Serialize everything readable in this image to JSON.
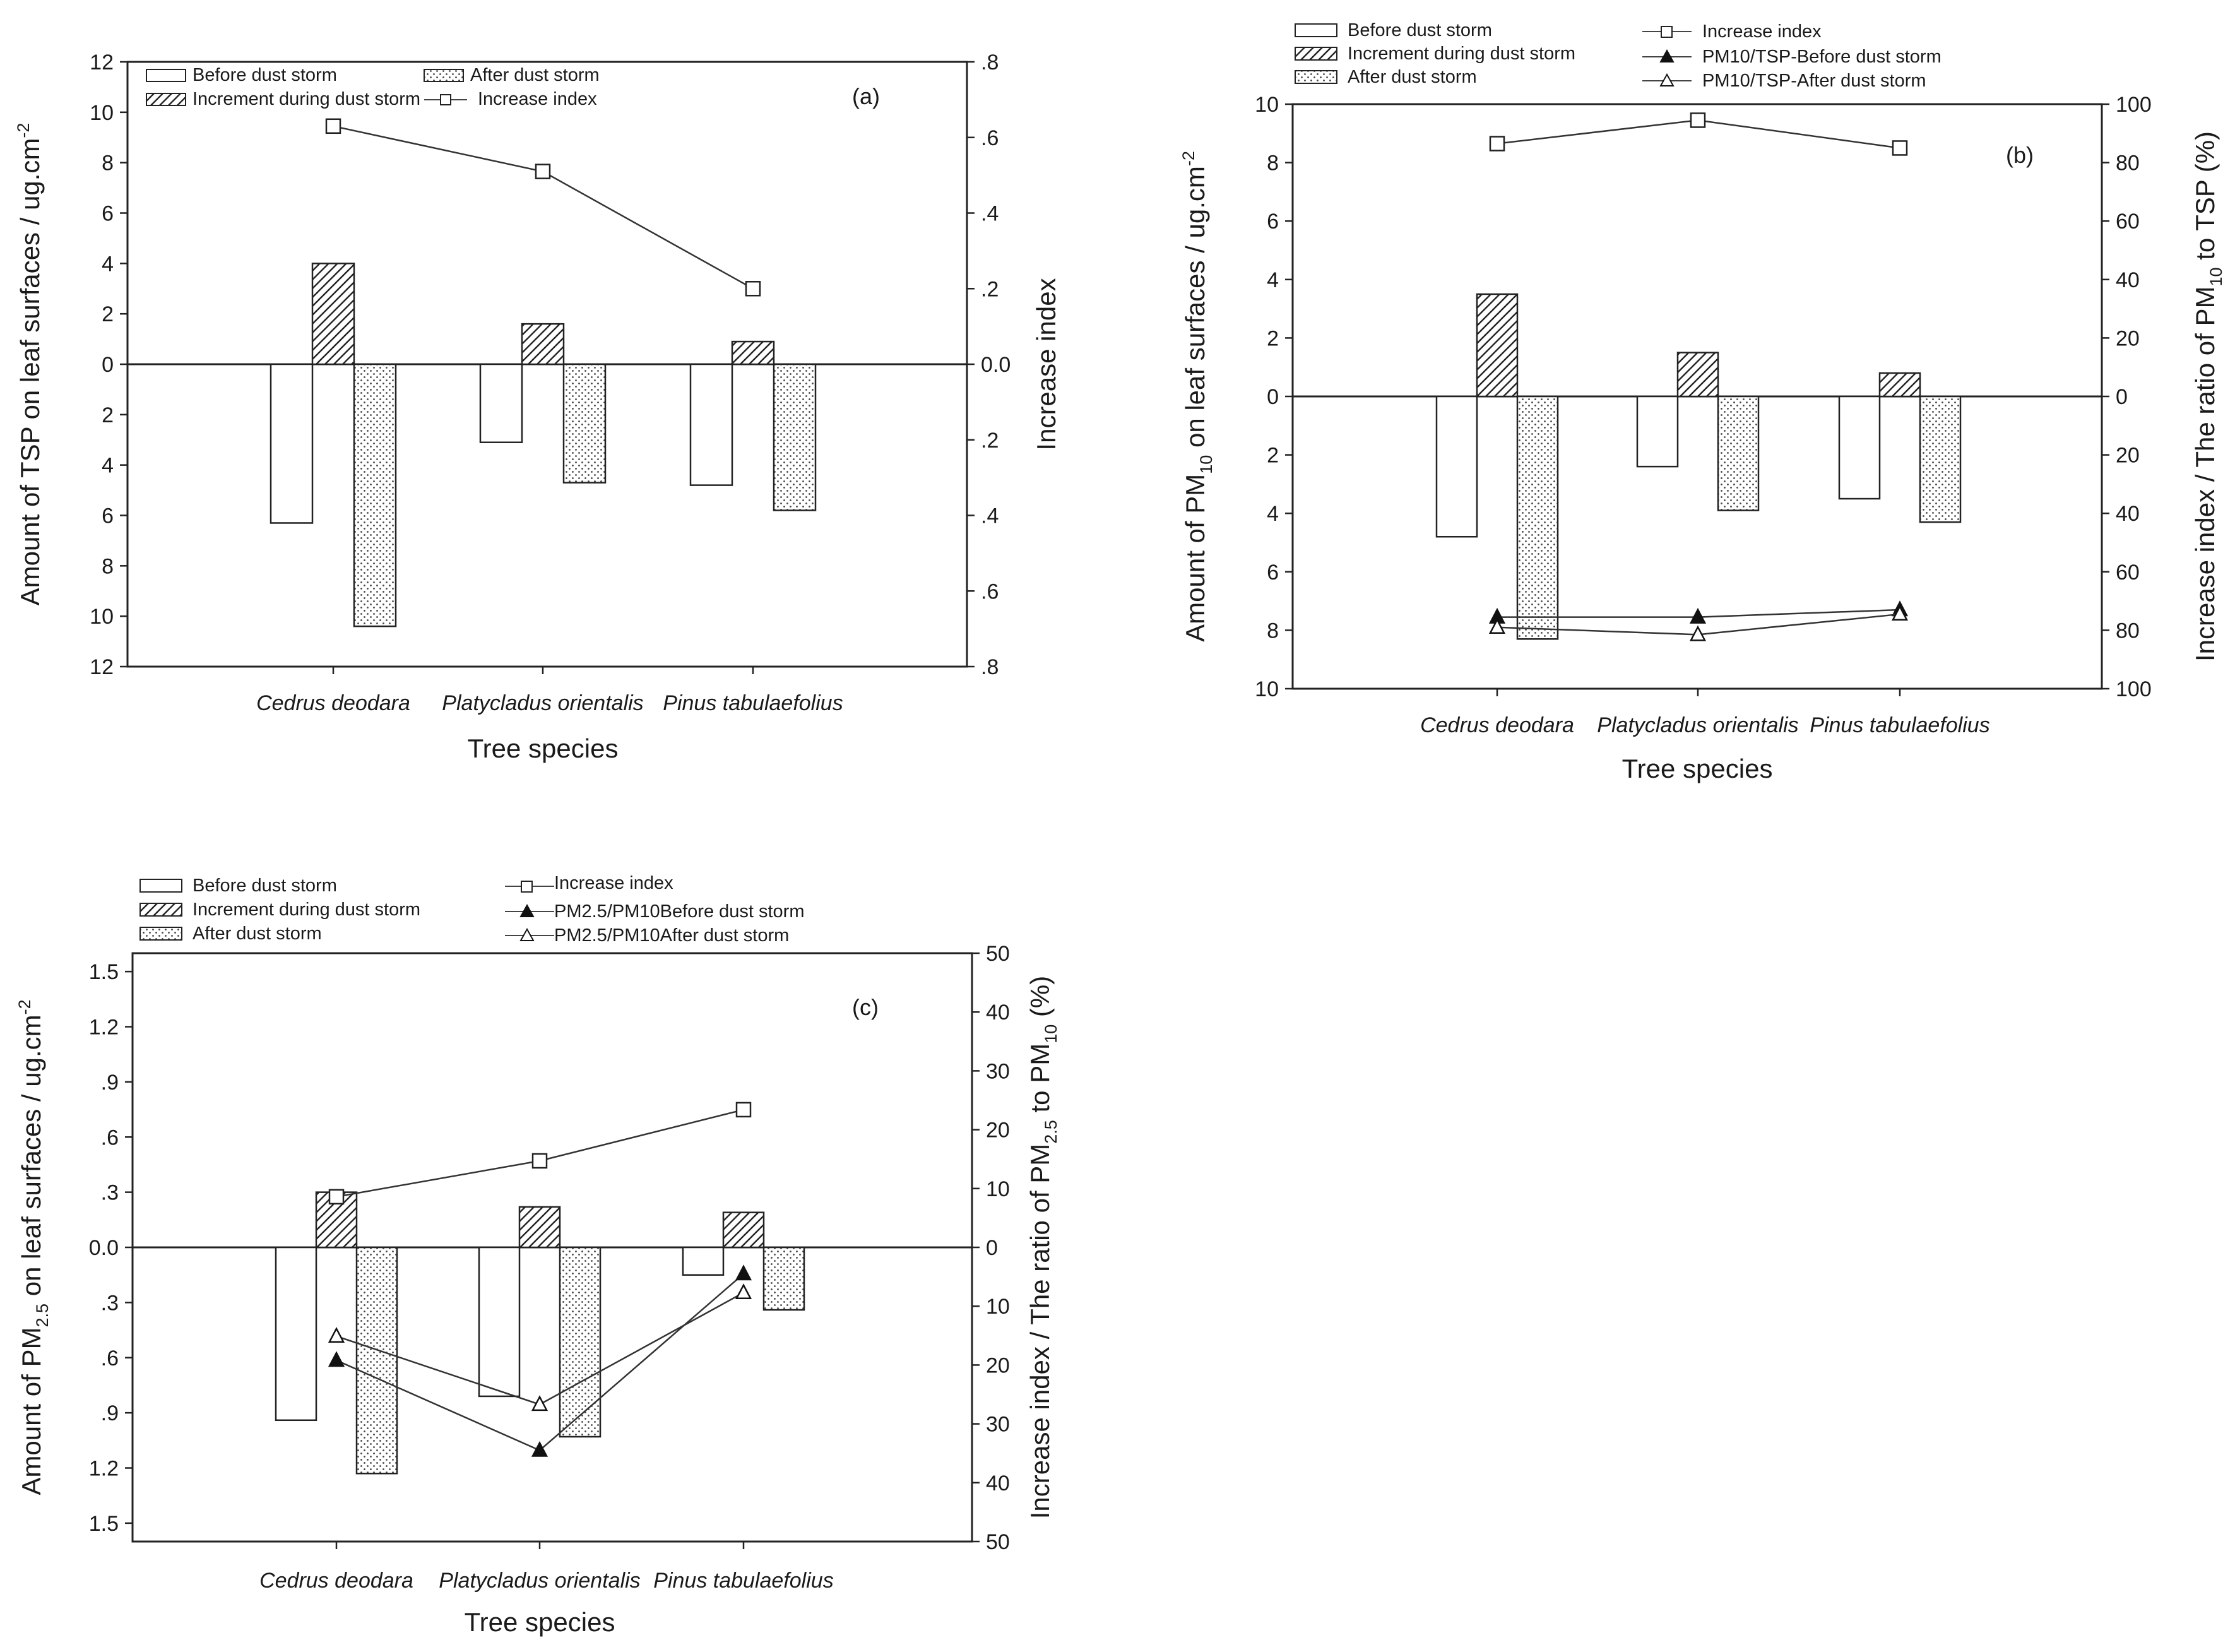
{
  "chart_data": [
    {
      "id": "a",
      "type": "bar",
      "panel_label": "(a)",
      "categories": [
        "Cedrus deodara",
        "Platycladus orientalis",
        "Pinus tabulaefolius"
      ],
      "xlabel": "Tree species",
      "ylabel_left": "Amount of TSP on leaf surfaces / ug.cm",
      "ylabel_left_sup": "-2",
      "ylabel_right": "Increase index",
      "ylim_left": [
        -12,
        12
      ],
      "ylim_right": [
        -0.8,
        0.8
      ],
      "yticks_left": [
        "12",
        "10",
        "8",
        "6",
        "4",
        "2",
        "0",
        "2",
        "4",
        "6",
        "8",
        "10",
        "12"
      ],
      "yticks_right": [
        ".8",
        ".6",
        ".4",
        ".2",
        "0.0",
        ".2",
        ".4",
        ".6",
        ".8"
      ],
      "bar_series": [
        {
          "name": "Before dust storm",
          "pattern": "white",
          "direction": "down",
          "values": [
            6.3,
            3.1,
            4.8
          ]
        },
        {
          "name": "Increment during dust storm",
          "pattern": "hatch",
          "direction": "up",
          "values": [
            4.0,
            1.6,
            0.9
          ]
        },
        {
          "name": "After dust storm",
          "pattern": "dots",
          "direction": "down",
          "values": [
            10.4,
            4.7,
            5.8
          ]
        }
      ],
      "line_series": [
        {
          "name": "Increase index",
          "marker": "square-open",
          "axis": "right",
          "direction": "up",
          "values": [
            0.63,
            0.51,
            0.2
          ]
        }
      ],
      "legend": [
        "Before dust storm",
        "After dust storm",
        "Increment during dust storm",
        "Increase index"
      ]
    },
    {
      "id": "b",
      "type": "bar",
      "panel_label": "(b)",
      "categories": [
        "Cedrus deodara",
        "Platycladus orientalis",
        "Pinus tabulaefolius"
      ],
      "xlabel": "Tree species",
      "ylabel_left": "Amount of PM10 on leaf surfaces / ug.cm-2",
      "ylabel_right": "Increase index / The ratio of PM10 to TSP (%)",
      "ylim_left": [
        -10,
        10
      ],
      "ylim_right": [
        -100,
        100
      ],
      "yticks_left": [
        "10",
        "8",
        "6",
        "4",
        "2",
        "0",
        "2",
        "4",
        "6",
        "8",
        "10"
      ],
      "yticks_right": [
        "100",
        "80",
        "60",
        "40",
        "20",
        "0",
        "20",
        "40",
        "60",
        "80",
        "100"
      ],
      "bar_series": [
        {
          "name": "Before dust storm",
          "pattern": "white",
          "direction": "down",
          "values": [
            4.8,
            2.4,
            3.5
          ]
        },
        {
          "name": "Increment during dust storm",
          "pattern": "hatch",
          "direction": "up",
          "values": [
            3.5,
            1.5,
            0.8
          ]
        },
        {
          "name": "After dust storm",
          "pattern": "dots",
          "direction": "down",
          "values": [
            8.3,
            3.9,
            4.3
          ]
        }
      ],
      "line_series": [
        {
          "name": "Increase index",
          "marker": "square-open",
          "axis": "right",
          "direction": "up",
          "values": [
            86.5,
            94.5,
            85
          ]
        },
        {
          "name": "PM10/TSP-Before dust storm",
          "marker": "triangle-filled",
          "axis": "right",
          "direction": "down",
          "values": [
            75.5,
            75.5,
            73
          ]
        },
        {
          "name": "PM10/TSP-After dust storm",
          "marker": "triangle-open",
          "axis": "right",
          "direction": "down",
          "values": [
            79,
            81.5,
            74.5
          ]
        }
      ],
      "legend": [
        "Before dust storm",
        "Increment during dust storm",
        "After dust storm",
        "Increase index",
        "PM10/TSP-Before dust storm",
        "PM10/TSP-After dust storm"
      ]
    },
    {
      "id": "c",
      "type": "bar",
      "panel_label": "(c)",
      "categories": [
        "Cedrus deodara",
        "Platycladus orientalis",
        "Pinus tabulaefolius"
      ],
      "xlabel": "Tree species",
      "ylabel_left": "Amount of PM2.5 on leaf surfaces / ug.cm-2",
      "ylabel_right": "Increase index / The ratio of PM2.5 to PM10 (%)",
      "ylim_left": [
        -1.6,
        1.6
      ],
      "ylim_right": [
        -50,
        50
      ],
      "yticks_left": [
        "1.5",
        "1.2",
        ".9",
        ".6",
        ".3",
        "0.0",
        ".3",
        ".6",
        ".9",
        "1.2",
        "1.5"
      ],
      "yticks_right": [
        "50",
        "40",
        "30",
        "20",
        "10",
        "0",
        "10",
        "20",
        "30",
        "40",
        "50"
      ],
      "bar_series": [
        {
          "name": "Before dust storm",
          "pattern": "white",
          "direction": "down",
          "values": [
            0.94,
            0.81,
            0.15
          ]
        },
        {
          "name": "Increment during dust storm",
          "pattern": "hatch",
          "direction": "up",
          "values": [
            0.3,
            0.22,
            0.19
          ]
        },
        {
          "name": "After dust storm",
          "pattern": "dots",
          "direction": "down",
          "values": [
            1.23,
            1.03,
            0.34
          ]
        }
      ],
      "line_series": [
        {
          "name": "Increase index",
          "marker": "square-open",
          "axis": "right",
          "direction": "up",
          "values": [
            8.6,
            14.7,
            23.4
          ]
        },
        {
          "name": "PM2.5/PM10Before dust storm",
          "marker": "triangle-filled",
          "axis": "right",
          "direction": "down",
          "values": [
            19.2,
            34.5,
            4.5
          ]
        },
        {
          "name": "PM2.5/PM10After dust storm",
          "marker": "triangle-open",
          "axis": "right",
          "direction": "down",
          "values": [
            15.1,
            26.7,
            7.7
          ]
        }
      ],
      "legend": [
        "Before dust storm",
        "Increment during dust storm",
        "After dust storm",
        "Increase index",
        "PM2.5/PM10Before dust storm",
        "PM2.5/PM10After dust storm"
      ]
    }
  ]
}
